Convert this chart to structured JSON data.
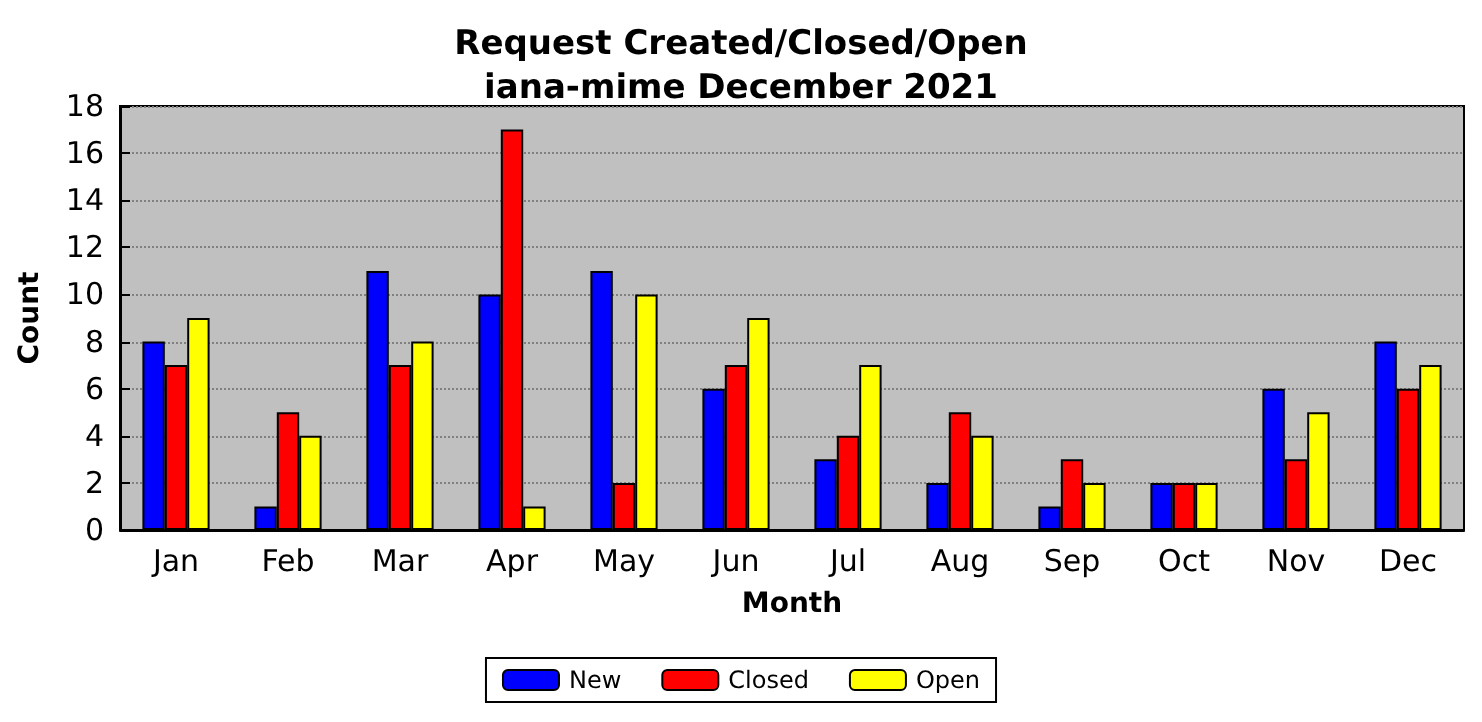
{
  "chart_data": {
    "type": "bar",
    "title": "Request Created/Closed/Open\niana-mime December 2021",
    "xlabel": "Month",
    "ylabel": "Count",
    "categories": [
      "Jan",
      "Feb",
      "Mar",
      "Apr",
      "May",
      "Jun",
      "Jul",
      "Aug",
      "Sep",
      "Oct",
      "Nov",
      "Dec"
    ],
    "series": [
      {
        "name": "New",
        "color": "#0000ff",
        "values": [
          8,
          1,
          11,
          10,
          11,
          6,
          3,
          2,
          1,
          2,
          6,
          8
        ]
      },
      {
        "name": "Closed",
        "color": "#ff0000",
        "values": [
          7,
          5,
          7,
          17,
          2,
          7,
          4,
          5,
          3,
          2,
          3,
          6
        ]
      },
      {
        "name": "Open",
        "color": "#ffff00",
        "values": [
          9,
          4,
          8,
          1,
          10,
          9,
          7,
          4,
          2,
          2,
          5,
          7
        ]
      }
    ],
    "ylim": [
      0,
      18
    ],
    "yticks": [
      0,
      2,
      4,
      6,
      8,
      10,
      12,
      14,
      16,
      18
    ],
    "grid": "y",
    "legend": "bottom"
  }
}
